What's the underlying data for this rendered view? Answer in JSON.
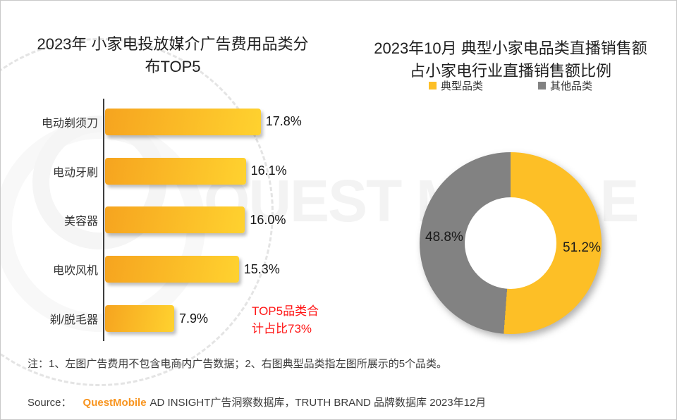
{
  "watermark": {
    "text": "QUEST MOBILE"
  },
  "colors": {
    "bar_gradient_start": "#F6A41F",
    "bar_gradient_end": "#FFD22F",
    "axis": "#3D3D3D",
    "annotation_red": "#FF1515",
    "brand_orange": "#F8941E",
    "donut_primary": "#FDBF26",
    "donut_other": "#828282"
  },
  "chart_data": [
    {
      "type": "bar",
      "orientation": "horizontal",
      "title": "2023年 小家电投放媒介广告费用品类分\n布TOP5",
      "categories": [
        "电动剃须刀",
        "电动牙刷",
        "美容器",
        "电吹风机",
        "剃/脱毛器"
      ],
      "values": [
        17.8,
        16.1,
        16.0,
        15.3,
        7.9
      ],
      "value_suffix": "%",
      "annotation": "TOP5品类合\n计占比73%",
      "grid": false,
      "legend_position": "none"
    },
    {
      "type": "pie",
      "subtype": "donut",
      "title": "2023年10月 典型小家电品类直播销售额\n占小家电行业直播销售额比例",
      "labels": [
        "典型品类",
        "其他品类"
      ],
      "values": [
        51.2,
        48.8
      ],
      "slice_colors": [
        "#FDBF26",
        "#828282"
      ],
      "value_suffix": "%",
      "legend_position": "top",
      "start_angle_deg": 0,
      "direction": "clockwise"
    }
  ],
  "footer": {
    "note": "注：1、左图广告费用不包含电商内广告数据；2、右图典型品类指左图所展示的5个品类。",
    "source_prefix": "Source：",
    "source_brand": "QuestMobile",
    "source_rest": "AD INSIGHT广告洞察数据库，TRUTH BRAND 品牌数据库 2023年12月"
  }
}
